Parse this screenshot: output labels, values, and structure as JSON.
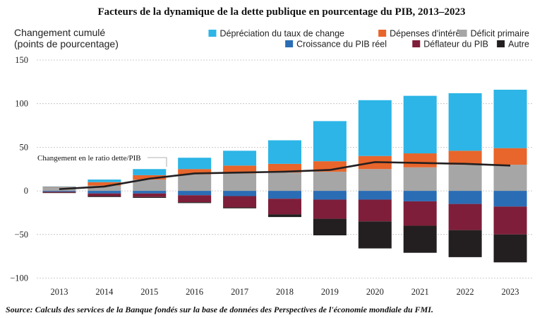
{
  "chart_data": {
    "type": "bar",
    "stacked": true,
    "title": "Facteurs de la dynamique de la dette publique en pourcentage du PIB, 2013–2023",
    "ylabel_line1": "Changement cumulé",
    "ylabel_line2": "(points de pourcentage)",
    "categories": [
      "2013",
      "2014",
      "2015",
      "2016",
      "2017",
      "2018",
      "2019",
      "2020",
      "2021",
      "2022",
      "2023"
    ],
    "ylim": [
      -100,
      150
    ],
    "yticks": [
      150,
      100,
      50,
      0,
      -50,
      -100
    ],
    "ytick_labels": [
      "150",
      "100",
      "50",
      "0",
      "−50",
      "−100"
    ],
    "grid": true,
    "legend_position": "top-right",
    "positive_series": [
      {
        "name": "Déficit primaire",
        "color": "#a6a6a6",
        "values": [
          4,
          6,
          13,
          19,
          20,
          21,
          22,
          25,
          27,
          30,
          30
        ]
      },
      {
        "name": "Dépenses d'intérêt",
        "color": "#e8652b",
        "values": [
          0.5,
          4,
          5,
          6,
          9,
          10,
          12,
          15,
          16,
          16,
          19
        ]
      },
      {
        "name": "Dépréciation du taux de change",
        "color": "#2cb5e6",
        "values": [
          0.5,
          3,
          7,
          13,
          17,
          27,
          46,
          64,
          66,
          66,
          67
        ]
      }
    ],
    "negative_series": [
      {
        "name": "Croissance du PIB réel",
        "color": "#2a6db5",
        "values": [
          -1,
          -3,
          -3,
          -5,
          -6,
          -9,
          -10,
          -10,
          -12,
          -15,
          -18
        ]
      },
      {
        "name": "Déflateur du PIB",
        "color": "#7e1e3a",
        "values": [
          -1,
          -3,
          -4,
          -8,
          -13,
          -18,
          -22,
          -25,
          -28,
          -30,
          -32
        ]
      },
      {
        "name": "Autre",
        "color": "#231f20",
        "values": [
          -0.5,
          -1,
          -1,
          -1,
          -1,
          -3,
          -19,
          -31,
          -31,
          -31,
          -32
        ]
      }
    ],
    "line_series": {
      "name": "Changement en le ratio dette/PIB",
      "color": "#231f20",
      "values": [
        2,
        5,
        14,
        20,
        21,
        22,
        24,
        33,
        32,
        31,
        29
      ]
    },
    "legend": [
      {
        "label": "Dépréciation du taux de change",
        "color": "#2cb5e6"
      },
      {
        "label": "Dépenses d'intérêt",
        "color": "#e8652b"
      },
      {
        "label": "Déficit primaire",
        "color": "#a6a6a6"
      },
      {
        "label": "Croissance du PIB réel",
        "color": "#2a6db5"
      },
      {
        "label": "Déflateur du PIB",
        "color": "#7e1e3a"
      },
      {
        "label": "Autre",
        "color": "#231f20"
      }
    ],
    "annotation": "Changement en le ratio dette/PIB",
    "source": "Source: Calculs des services de la Banque fondés sur la base de données des Perspectives de l'économie mondiale du FMI."
  }
}
